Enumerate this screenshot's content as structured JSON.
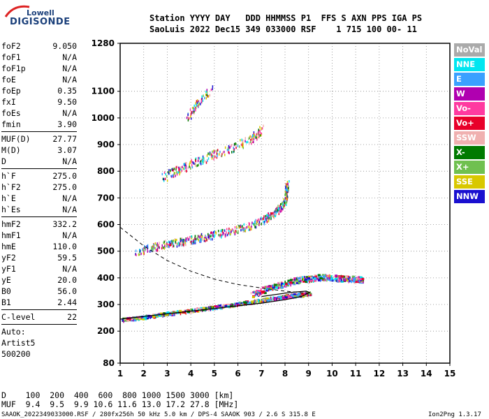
{
  "logo": {
    "top": "Lowell",
    "main": "DIGISONDE"
  },
  "header": {
    "row1": "Station YYYY DAY   DDD HHMMSS P1  FFS S AXN PPS IGA PS",
    "row2": "SaoLuis 2022 Dec15 349 033000 RSF    1 715 100 00- 11"
  },
  "params": {
    "group1": [
      {
        "k": "foF2",
        "v": "9.050"
      },
      {
        "k": "foF1",
        "v": "N/A"
      },
      {
        "k": "foF1p",
        "v": "N/A"
      },
      {
        "k": "foE",
        "v": "N/A"
      },
      {
        "k": "foEp",
        "v": "0.35"
      },
      {
        "k": "fxI",
        "v": "9.50"
      },
      {
        "k": "foEs",
        "v": "N/A"
      },
      {
        "k": "fmin",
        "v": "3.90"
      }
    ],
    "group2": [
      {
        "k": "MUF(D)",
        "v": "27.77"
      },
      {
        "k": "M(D)",
        "v": "3.07"
      },
      {
        "k": "D",
        "v": "N/A"
      }
    ],
    "group3": [
      {
        "k": "h`F",
        "v": "275.0"
      },
      {
        "k": "h`F2",
        "v": "275.0"
      },
      {
        "k": "h`E",
        "v": "N/A"
      },
      {
        "k": "h`Es",
        "v": "N/A"
      }
    ],
    "group4": [
      {
        "k": "hmF2",
        "v": "332.2"
      },
      {
        "k": "hmF1",
        "v": "N/A"
      },
      {
        "k": "hmE",
        "v": "110.0"
      },
      {
        "k": "yF2",
        "v": "59.5"
      },
      {
        "k": "yF1",
        "v": "N/A"
      },
      {
        "k": "yE",
        "v": "20.0"
      },
      {
        "k": "B0",
        "v": "56.0"
      },
      {
        "k": "B1",
        "v": "2.44"
      }
    ],
    "clevel": {
      "k": "C-level",
      "v": "22"
    }
  },
  "misc": {
    "auto": "Auto:",
    "artist": "Artist5",
    "code": "500200"
  },
  "legend": [
    {
      "label": "NoVal",
      "color": "#aaaaaa"
    },
    {
      "label": "NNE",
      "color": "#00e6f0"
    },
    {
      "label": "E",
      "color": "#3aa0ff"
    },
    {
      "label": "W",
      "color": "#b000b0"
    },
    {
      "label": "Vo-",
      "color": "#ff3aa0"
    },
    {
      "label": "Vo+",
      "color": "#e8002a"
    },
    {
      "label": "SSW",
      "color": "#f0b0b0"
    },
    {
      "label": "X-",
      "color": "#007a00"
    },
    {
      "label": "X+",
      "color": "#70c050"
    },
    {
      "label": "SSE",
      "color": "#d8c800"
    },
    {
      "label": "NNW",
      "color": "#1a10d0"
    }
  ],
  "footer": {
    "d_row": "D    100  200  400  600  800 1000 1500 3000 [km]",
    "muf_row": "MUF  9.4  9.5  9.9 10.6 11.6 13.0 17.2 27.8 [MHz]",
    "info": "SAAOK_2022349033000.RSF / 280fx256h 50 kHz 5.0 km / DPS-4 SAAOK 903 / 2.6 S 315.8 E",
    "version": "Ion2Png 1.3.17"
  },
  "chart_data": {
    "type": "scatter",
    "x": {
      "min": 1,
      "max": 15,
      "ticks": [
        1,
        2,
        3,
        4,
        5,
        6,
        7,
        8,
        9,
        10,
        11,
        12,
        13,
        14,
        15
      ]
    },
    "y": {
      "min": 80,
      "max": 1280,
      "ticks": [
        80,
        200,
        300,
        400,
        500,
        600,
        700,
        800,
        900,
        1000,
        1100,
        1280
      ]
    },
    "traces": [
      {
        "name": "F2 O-trace",
        "points": [
          [
            1.1,
            245
          ],
          [
            2,
            255
          ],
          [
            3,
            268
          ],
          [
            4,
            280
          ],
          [
            5,
            292
          ],
          [
            6,
            305
          ],
          [
            7,
            318
          ],
          [
            8,
            333
          ],
          [
            8.7,
            340
          ],
          [
            9.05,
            345
          ]
        ]
      },
      {
        "name": "2F2 trace",
        "points": [
          [
            1.6,
            500
          ],
          [
            3,
            530
          ],
          [
            4,
            545
          ],
          [
            5,
            565
          ],
          [
            6,
            585
          ],
          [
            7,
            615
          ],
          [
            7.6,
            650
          ],
          [
            8,
            690
          ],
          [
            8.1,
            760
          ]
        ]
      },
      {
        "name": "3F2 trace",
        "points": [
          [
            2.8,
            780
          ],
          [
            3.5,
            810
          ],
          [
            4.5,
            850
          ],
          [
            5.5,
            880
          ],
          [
            6.5,
            920
          ],
          [
            7,
            960
          ]
        ]
      },
      {
        "name": "4F2 trace",
        "points": [
          [
            3.8,
            1000
          ],
          [
            4.3,
            1060
          ],
          [
            4.9,
            1110
          ]
        ]
      },
      {
        "name": "X spread",
        "points": [
          [
            6.5,
            340
          ],
          [
            7.5,
            370
          ],
          [
            8.5,
            395
          ],
          [
            9.5,
            405
          ],
          [
            10.5,
            400
          ],
          [
            11.3,
            395
          ]
        ]
      }
    ],
    "profile_solid": [
      [
        1,
        245
      ],
      [
        3,
        265
      ],
      [
        5,
        285
      ],
      [
        7,
        305
      ],
      [
        8,
        318
      ],
      [
        8.7,
        330
      ],
      [
        9.05,
        345
      ],
      [
        8.9,
        350
      ],
      [
        8.2,
        345
      ],
      [
        7,
        330
      ]
    ],
    "muf_dashed": [
      [
        1,
        590
      ],
      [
        2,
        520
      ],
      [
        3,
        465
      ],
      [
        4,
        425
      ],
      [
        5,
        395
      ],
      [
        6,
        375
      ],
      [
        7,
        362
      ],
      [
        8,
        350
      ],
      [
        9,
        342
      ]
    ]
  }
}
